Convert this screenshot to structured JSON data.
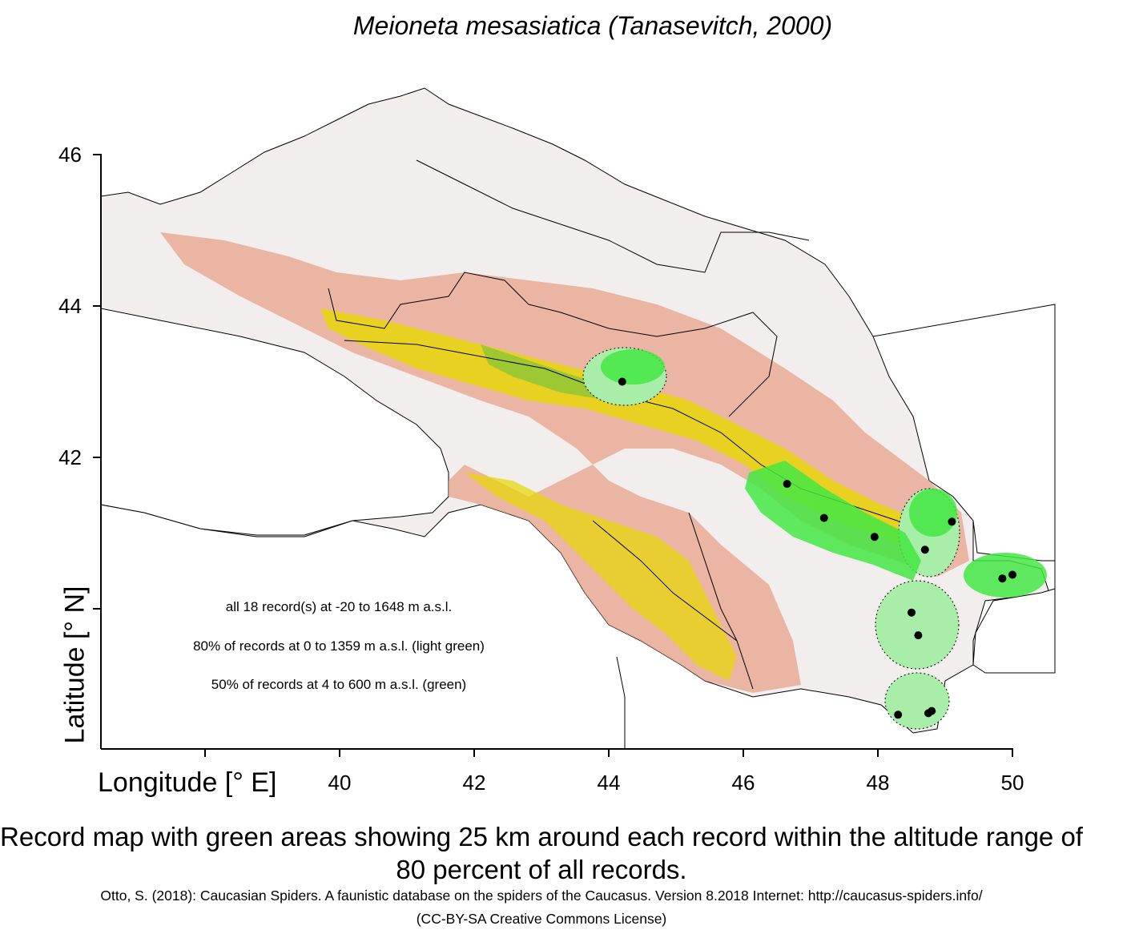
{
  "title": "Meioneta mesasiatica (Tanasevitch, 2000)",
  "axes": {
    "y_title": "Latitude [° N]",
    "x_title": "Longitude [° E]",
    "y_ticks": [
      "46",
      "44",
      "42"
    ],
    "x_ticks": [
      "40",
      "42",
      "44",
      "46",
      "48",
      "50"
    ]
  },
  "stats": {
    "all_records": "all 18 record(s) at  -20  to  1648  m a.s.l.",
    "pct80": "80% of records at 0 to 1359  m a.s.l. (light green)",
    "pct50": "50% of records at 4 to 600  m a.s.l. (green)"
  },
  "caption": "Record map with green areas showing 25 km around each record within the altitude range of 80 percent of all records.",
  "credit_line1": "Otto, S. (2018): Caucasian Spiders. A faunistic database on the spiders of the Caucasus. Version 8.2018 Internet: http://caucasus-spiders.info/",
  "credit_line2": "(CC-BY-SA Creative Commons License)",
  "colors": {
    "lowland": "#f2eeee",
    "mid_altitude": "#e8a28a",
    "high_altitude": "#e8d800",
    "peak": "#6cc23c",
    "range_80": "#a8eea8",
    "range_50": "#44e844",
    "record_point": "#000000"
  },
  "records": [
    {
      "lon": 44.2,
      "lat": 43.0
    },
    {
      "lon": 46.65,
      "lat": 41.65
    },
    {
      "lon": 47.2,
      "lat": 41.2
    },
    {
      "lon": 47.95,
      "lat": 40.95
    },
    {
      "lon": 48.7,
      "lat": 40.78
    },
    {
      "lon": 49.1,
      "lat": 41.15
    },
    {
      "lon": 49.85,
      "lat": 40.4
    },
    {
      "lon": 50.0,
      "lat": 40.45
    },
    {
      "lon": 48.5,
      "lat": 39.95
    },
    {
      "lon": 48.6,
      "lat": 39.65
    },
    {
      "lon": 48.3,
      "lat": 38.6
    },
    {
      "lon": 48.75,
      "lat": 38.62
    },
    {
      "lon": 48.8,
      "lat": 38.65
    }
  ]
}
